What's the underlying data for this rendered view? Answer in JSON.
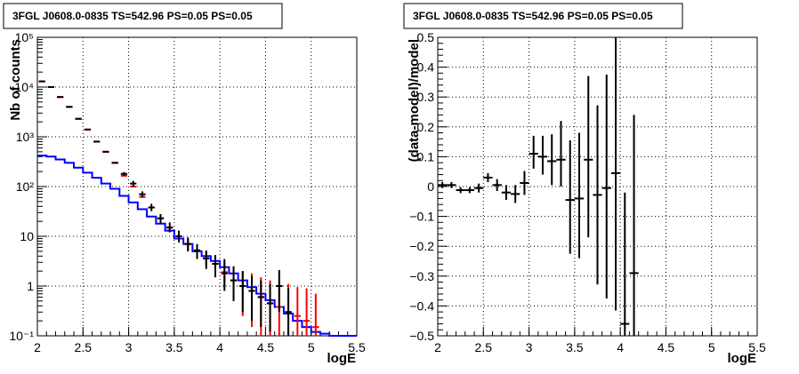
{
  "chart_data": [
    {
      "type": "line",
      "title": "3FGL J0608.0-0835 TS=542.96 PS=0.05 PS=0.05",
      "xlabel": "logE",
      "ylabel": "Nb of counts",
      "xlim": [
        2,
        5.5
      ],
      "ylim": [
        0.1,
        100000
      ],
      "yscale": "log",
      "grid": true,
      "x_ticks": [
        "2",
        "2.5",
        "3",
        "3.5",
        "4",
        "4.5",
        "5",
        "5.5"
      ],
      "y_ticks": [
        "10⁻¹",
        "1",
        "10",
        "10²",
        "10³",
        "10⁴",
        "10⁵"
      ],
      "bin_width": 0.1,
      "series": [
        {
          "color": "#0000ff",
          "x": [
            2.05,
            2.15,
            2.25,
            2.35,
            2.45,
            2.55,
            2.65,
            2.75,
            2.85,
            2.95,
            3.05,
            3.15,
            3.25,
            3.35,
            3.45,
            3.55,
            3.65,
            3.75,
            3.85,
            3.95,
            4.05,
            4.15,
            4.25,
            4.35,
            4.45,
            4.55,
            4.65,
            4.75,
            4.85,
            4.95,
            5.05,
            5.15,
            5.25,
            5.35,
            5.45
          ],
          "values": [
            420,
            400,
            350,
            300,
            240,
            190,
            150,
            115,
            90,
            65,
            48,
            35,
            25,
            18,
            13,
            9,
            7,
            5,
            4,
            3.2,
            2.4,
            1.8,
            1.3,
            0.95,
            0.7,
            0.52,
            0.38,
            0.28,
            0.2,
            0.15,
            0.12,
            0.11,
            0.1,
            0.1,
            0.1
          ]
        },
        {
          "color": "#ff0000",
          "x": [
            2.05,
            2.15,
            2.25,
            2.35,
            2.45,
            2.55,
            2.65,
            2.75,
            2.85,
            2.95,
            3.05,
            3.15,
            3.25,
            3.35,
            3.45,
            3.55,
            3.65,
            3.75,
            3.85,
            3.95,
            4.05,
            4.15,
            4.25,
            4.35,
            4.45,
            4.55,
            4.65,
            4.75,
            4.85,
            4.95,
            5.05
          ],
          "values": [
            13000,
            10000,
            6300,
            4000,
            2300,
            1400,
            800,
            500,
            300,
            165,
            100,
            62,
            38,
            23,
            15,
            10,
            7,
            5.2,
            3.6,
            2.8,
            1.9,
            1.3,
            1.0,
            0.8,
            0.6,
            0.45,
            0.38,
            0.3,
            0.25,
            0.2,
            0.15
          ],
          "err_low": [
            0,
            0,
            0,
            0,
            0,
            0,
            0,
            0,
            0,
            0,
            0,
            0,
            0,
            0,
            0,
            0,
            0,
            0,
            0,
            0,
            0,
            0,
            0,
            0,
            0,
            0,
            0,
            0,
            0,
            0,
            0
          ],
          "err_high": [
            0,
            0,
            0,
            0,
            0,
            0,
            0,
            0,
            0,
            0,
            0,
            0,
            0,
            0,
            0,
            0,
            0,
            0,
            0,
            0,
            0,
            0,
            0,
            0,
            0,
            0,
            0,
            0,
            0,
            0,
            0
          ],
          "err_plot_low": [
            13000,
            10000,
            6300,
            4000,
            2300,
            1400,
            800,
            500,
            300,
            165,
            100,
            62,
            38,
            23,
            15,
            8,
            5,
            3.8,
            2.5,
            1.8,
            1.0,
            0.5,
            0.25,
            0.15,
            0.1,
            0.1,
            0.1,
            0.1,
            0.1,
            0.1,
            0.1
          ],
          "err_plot_high": [
            13000,
            10000,
            6300,
            4000,
            2300,
            1400,
            800,
            500,
            300,
            165,
            100,
            62,
            38,
            23,
            15,
            12,
            9,
            6.8,
            4.8,
            4.2,
            3.0,
            2.3,
            2.0,
            1.8,
            1.5,
            1.3,
            1.2,
            1.1,
            0.95,
            0.9,
            0.7
          ]
        },
        {
          "color": "#000000",
          "x": [
            2.05,
            2.15,
            2.25,
            2.35,
            2.45,
            2.55,
            2.65,
            2.75,
            2.85,
            2.95,
            3.05,
            3.15,
            3.25,
            3.35,
            3.45,
            3.55,
            3.65,
            3.75,
            3.85,
            3.95,
            4.05,
            4.15,
            4.25,
            4.35,
            4.45,
            4.55,
            4.65,
            4.75
          ],
          "values": [
            13000,
            10000,
            6300,
            4000,
            2300,
            1400,
            800,
            500,
            300,
            180,
            115,
            70,
            38,
            23,
            15,
            10,
            7,
            5.2,
            3.6,
            2.8,
            1.8,
            1.3,
            1.0,
            0.8,
            0.6,
            0.45,
            1.0,
            0.3
          ],
          "err_plot_low": [
            12700,
            9800,
            6150,
            3900,
            2250,
            1370,
            780,
            490,
            290,
            165,
            100,
            60,
            32,
            18,
            12,
            7.5,
            5,
            3.5,
            2.2,
            1.5,
            0.8,
            0.5,
            0.3,
            0.2,
            0.15,
            0.12,
            0.3,
            0.1
          ],
          "err_plot_high": [
            13300,
            10200,
            6450,
            4100,
            2350,
            1430,
            820,
            510,
            310,
            195,
            130,
            80,
            45,
            28,
            19,
            13,
            9.5,
            7,
            5.2,
            4.2,
            3.5,
            2.5,
            2.0,
            1.6,
            1.3,
            1.1,
            2.1,
            0.9
          ]
        }
      ]
    },
    {
      "type": "scatter",
      "title": "3FGL J0608.0-0835 TS=542.96 PS=0.05 PS=0.05",
      "xlabel": "logE",
      "ylabel": "(data-model)/model",
      "xlim": [
        2,
        5.5
      ],
      "ylim": [
        -0.5,
        0.5
      ],
      "grid": true,
      "x_ticks": [
        "2",
        "2.5",
        "3",
        "3.5",
        "4",
        "4.5",
        "5",
        "5.5"
      ],
      "y_ticks": [
        "−0.5",
        "−0.4",
        "−0.3",
        "−0.2",
        "−0.1",
        "0",
        "0.1",
        "0.2",
        "0.3",
        "0.4",
        "0.5"
      ],
      "x_err": 0.05,
      "series": [
        {
          "color": "#000000",
          "x": [
            2.05,
            2.15,
            2.25,
            2.35,
            2.45,
            2.55,
            2.65,
            2.75,
            2.85,
            2.95,
            3.05,
            3.15,
            3.25,
            3.35,
            3.45,
            3.55,
            3.65,
            3.75,
            3.85,
            3.95,
            4.05,
            4.15
          ],
          "values": [
            0.005,
            0.005,
            -0.012,
            -0.012,
            -0.005,
            0.03,
            0.005,
            -0.02,
            -0.025,
            0.012,
            0.11,
            0.1,
            0.085,
            0.09,
            -0.045,
            -0.04,
            0.09,
            -0.028,
            -0.005,
            0.045,
            -0.46,
            -0.29
          ],
          "err_low": [
            0.01,
            0.01,
            0.01,
            0.01,
            0.015,
            0.015,
            0.02,
            0.025,
            0.03,
            0.04,
            0.05,
            0.06,
            0.08,
            0.09,
            0.18,
            0.2,
            0.26,
            0.3,
            0.37,
            0.46,
            0.04,
            0.21
          ],
          "err_high": [
            0.01,
            0.01,
            0.01,
            0.01,
            0.015,
            0.015,
            0.02,
            0.025,
            0.03,
            0.04,
            0.06,
            0.07,
            0.09,
            0.13,
            0.2,
            0.22,
            0.28,
            0.3,
            0.38,
            0.46,
            0.44,
            0.53
          ]
        }
      ]
    }
  ]
}
